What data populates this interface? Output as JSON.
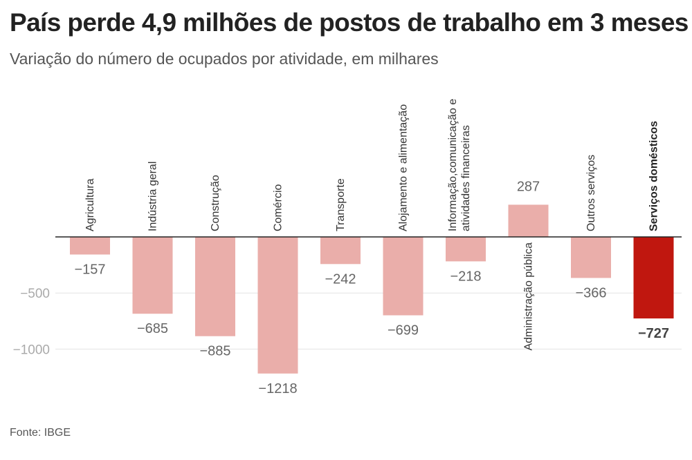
{
  "header": {
    "title": "País perde 4,9 milhões de postos de trabalho em 3 meses",
    "subtitle": "Variação do número de ocupados por atividade, em milhares"
  },
  "footer": {
    "source": "Fonte: IBGE"
  },
  "colors": {
    "bar": "#eaaeaa",
    "highlight": "#c0170f",
    "grid": "#e2e2e2",
    "zero_line": "#222222"
  },
  "chart_data": {
    "type": "bar",
    "title": "País perde 4,9 milhões de postos de trabalho em 3 meses",
    "subtitle": "Variação do número de ocupados por atividade, em milhares",
    "xlabel": "",
    "ylabel": "",
    "ylim": [
      -1250,
      300
    ],
    "yticks": [
      -500,
      -1000
    ],
    "ytick_labels": [
      "−500",
      "−1000"
    ],
    "grid": true,
    "legend": "none",
    "highlight_category": "Serviços domésticos",
    "categories": [
      "Agricultura",
      "Indústria geral",
      "Construção",
      "Comércio",
      "Transporte",
      "Alojamento e alimentação",
      "Informação,comunicação e atividades financeiras",
      "Administração pública",
      "Outros serviços",
      "Serviços domésticos"
    ],
    "category_lines": [
      [
        "Agricultura"
      ],
      [
        "Indústria geral"
      ],
      [
        "Construção"
      ],
      [
        "Comércio"
      ],
      [
        "Transporte"
      ],
      [
        "Alojamento e alimentação"
      ],
      [
        "Informação,comunicação e",
        "atividades financeiras"
      ],
      [
        "Administração pública"
      ],
      [
        "Outros serviços"
      ],
      [
        "Serviços domésticos"
      ]
    ],
    "values": [
      -157,
      -685,
      -885,
      -1218,
      -242,
      -699,
      -218,
      287,
      -366,
      -727
    ],
    "value_labels": [
      "−157",
      "−685",
      "−885",
      "−1218",
      "−242",
      "−699",
      "−218",
      "287",
      "−366",
      "−727"
    ]
  }
}
